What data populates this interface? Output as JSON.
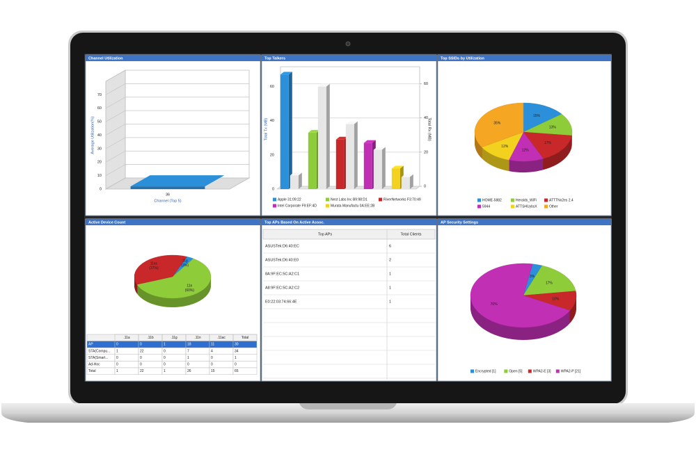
{
  "chart_data": [
    {
      "type": "bar3d",
      "title": "Channel Utilization",
      "categories": [
        "36"
      ],
      "values": [
        2
      ],
      "color": "#2b8fd9",
      "xlabel": "Channel (Top 5)",
      "ylabel": "Average Utilization(%)",
      "ylim": [
        0,
        80
      ],
      "yticks": [
        0,
        10,
        20,
        30,
        40,
        50,
        60,
        70
      ],
      "grid": true
    },
    {
      "type": "bar",
      "title": "Top Talkers",
      "categories": [
        "Apple 31:09:22",
        "Nest Labs Inc B9:98:D1",
        "RiverNetworks F3:70:49",
        "Intel Corporate F9:EF:4D",
        "Murata Manufactu 0A:EE:2B"
      ],
      "colors": [
        "#2b8fd9",
        "#8fcc3a",
        "#c8282a",
        "#c02fb4",
        "#f2d21e"
      ],
      "series": [
        {
          "values": [
            67,
            33,
            29,
            27,
            12
          ]
        },
        {
          "values": [
            8,
            60,
            38,
            23,
            7
          ],
          "color": "#e6e6e6",
          "axis": "y2"
        }
      ],
      "ylabel": "Total Tx (MB)",
      "y2label": "Total Rx (MB)",
      "ylim": [
        0,
        70
      ],
      "yticks": [
        0,
        20,
        40,
        60
      ],
      "y2lim": [
        0,
        70
      ],
      "y2ticks": [
        0,
        20,
        40,
        60
      ],
      "grid": true
    },
    {
      "type": "pie",
      "title": "Top SSIDs by Utilization",
      "categories": [
        "HOME-5882",
        "Heralds_WiFi",
        "ATTTNx2es 2.4",
        "5944",
        "ATTSHUybsX",
        "Other"
      ],
      "values": [
        15,
        13,
        17,
        12,
        12,
        35
      ],
      "value_labels": [
        "15%",
        "13%",
        "17%",
        "12%",
        "12%",
        "35%"
      ],
      "colors": [
        "#2b8fd9",
        "#8fcc3a",
        "#c8282a",
        "#c02fb4",
        "#f2d21e",
        "#f5a623"
      ]
    },
    {
      "type": "pie",
      "title": "Active Device Count",
      "categories": [
        "11g",
        "11n",
        "11ac"
      ],
      "values": [
        3,
        60,
        37
      ],
      "value_labels": [
        "(3%)",
        "(60%)",
        "(37%)"
      ],
      "colors": [
        "#2b8fd9",
        "#8fcc3a",
        "#c8282a"
      ]
    },
    {
      "type": "pie",
      "title": "AP Security Settings",
      "categories": [
        "Encrypted [1]",
        "Open [5]",
        "WPA2-E [3]",
        "WPA2-P [21]"
      ],
      "values": [
        3,
        17,
        10,
        70
      ],
      "value_labels": [
        "3%",
        "17%",
        "10%",
        "70%"
      ],
      "colors": [
        "#2b8fd9",
        "#8fcc3a",
        "#c8282a",
        "#c02fb4"
      ]
    }
  ],
  "tables": [
    {
      "columns": [
        ".11a",
        ".11b",
        ".11g",
        ".11n",
        ".11ac",
        "Total"
      ],
      "rows": [
        [
          "AP",
          0,
          0,
          1,
          18,
          11,
          30
        ],
        [
          "STA(Compu...",
          1,
          22,
          0,
          7,
          4,
          34
        ],
        [
          "STA(Smart...",
          0,
          0,
          0,
          1,
          0,
          1
        ],
        [
          "Ad-Hoc",
          0,
          0,
          0,
          0,
          0,
          0
        ],
        [
          "Total",
          1,
          22,
          1,
          26,
          15,
          65
        ]
      ]
    },
    {
      "title": "Top APs Based On Active Assoc.",
      "columns": [
        "Top APs",
        "Total Clients"
      ],
      "rows": [
        [
          "ASUSTek:D6:40:EC",
          6
        ],
        [
          "ASUSTek:D6:40:E0",
          2
        ],
        [
          "8A:9F:EC:5C:A2:C1",
          1
        ],
        [
          "A8:9F:EC:5C:A2:C2",
          1
        ],
        [
          "E0:22:03:74:66:4E",
          1
        ]
      ]
    }
  ]
}
